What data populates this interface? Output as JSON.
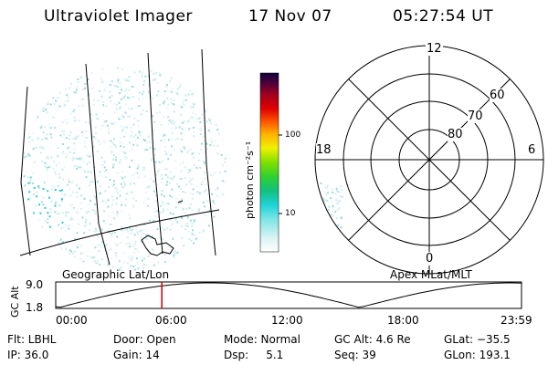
{
  "header": {
    "instrument": "Ultraviolet Imager",
    "date": "17 Nov 07",
    "time": "05:27:54 UT"
  },
  "colorbar": {
    "label": "photon cm⁻²s⁻¹",
    "ticks": [
      "100",
      "10"
    ]
  },
  "polar_plot": {
    "hour_labels": {
      "top": "12",
      "left": "18",
      "right": "6",
      "bottom": "0"
    },
    "lat_labels": [
      "60",
      "70",
      "80"
    ]
  },
  "map_labels": {
    "left": "Geographic Lat/Lon",
    "right": "Apex MLat/MLT"
  },
  "altitude_plot": {
    "ylabel": "GC Alt",
    "y_ticks": [
      "9.0",
      "1.8"
    ],
    "x_ticks": [
      "00:00",
      "06:00",
      "12:00",
      "18:00",
      "23:59"
    ],
    "marker_color": "#d00000"
  },
  "info": {
    "row1": {
      "flt": "Flt: LBHL",
      "door": "Door: Open",
      "mode": "Mode: Normal",
      "gc_alt": "GC Alt: 4.6 Re",
      "glat": "GLat: −35.5"
    },
    "row2": {
      "ip": "IP: 36.0",
      "gain": "Gain: 14",
      "dsp": "Dsp:     5.1",
      "seq": "Seq: 39",
      "glon": "GLon: 193.1"
    }
  }
}
